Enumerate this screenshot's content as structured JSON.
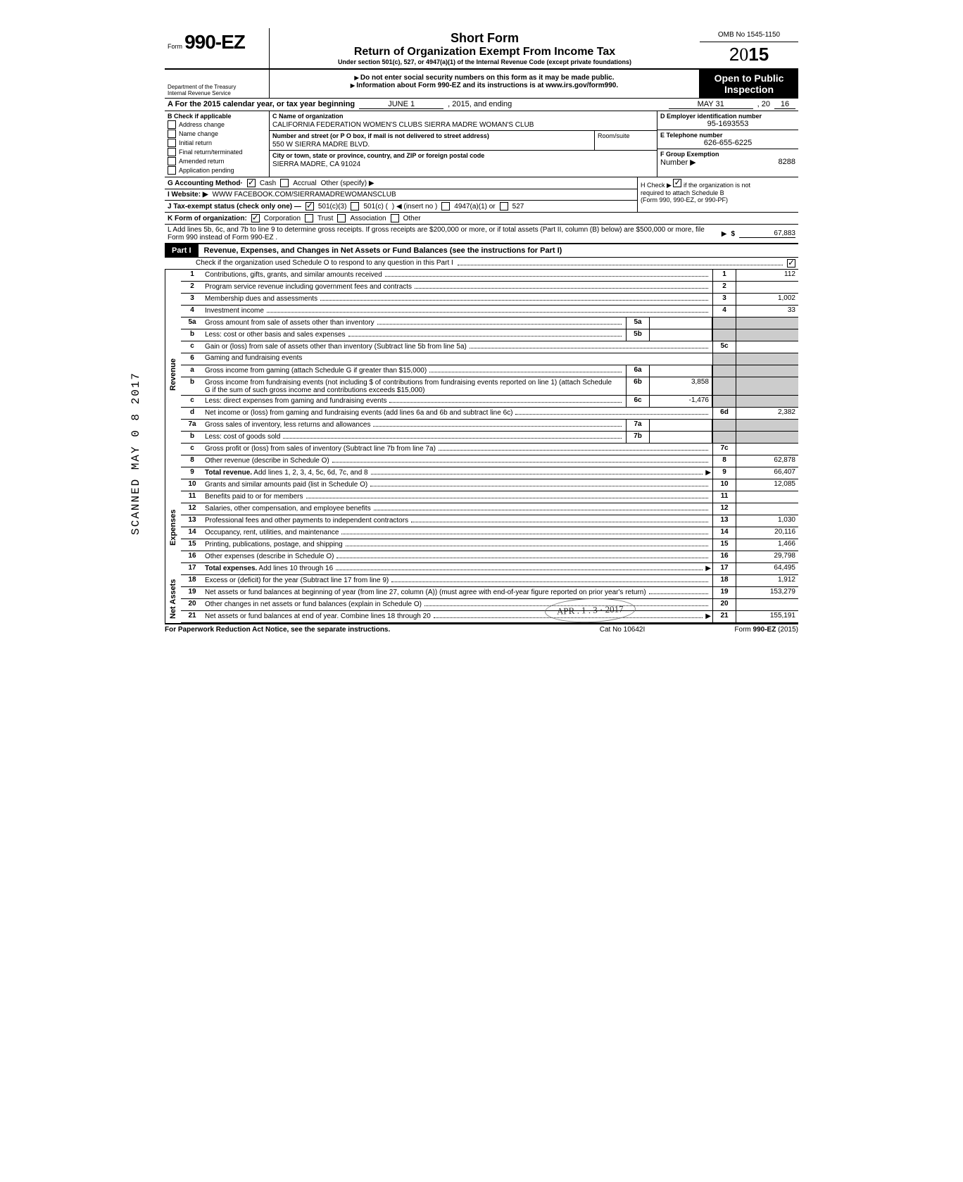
{
  "form": {
    "form_prefix": "Form",
    "form_number": "990-EZ",
    "omb": "OMB No 1545-1150",
    "year": "2015",
    "title1": "Short Form",
    "title2": "Return of Organization Exempt From Income Tax",
    "title3": "Under section 501(c), 527, or 4947(a)(1) of the Internal Revenue Code (except private foundations)",
    "warn": "Do not enter social security numbers on this form as it may be made public.",
    "info": "Information about Form 990-EZ and its instructions is at www.irs.gov/form990.",
    "dept1": "Department of the Treasury",
    "dept2": "Internal Revenue Service",
    "open1": "Open to Public",
    "open2": "Inspection"
  },
  "period": {
    "label_a": "A For the 2015 calendar year, or tax year beginning",
    "begin": "JUNE 1",
    "mid": ", 2015, and ending",
    "end": "MAY 31",
    "tail": ", 20",
    "endyr": "16"
  },
  "section_b": {
    "header": "B Check if applicable",
    "items": [
      "Address change",
      "Name change",
      "Initial return",
      "Final return/terminated",
      "Amended return",
      "Application pending"
    ]
  },
  "section_c": {
    "name_label": "C Name of organization",
    "name": "CALIFORNIA FEDERATION WOMEN'S CLUBS SIERRA MADRE WOMAN'S CLUB",
    "addr_label": "Number and street (or P O box, if mail is not delivered to street address)",
    "addr": "550 W SIERRA MADRE BLVD.",
    "room_label": "Room/suite",
    "city_label": "City or town, state or province, country, and ZIP or foreign postal code",
    "city": "SIERRA MADRE, CA 91024"
  },
  "section_d": {
    "label": "D Employer identification number",
    "val": "95-1693553"
  },
  "section_e": {
    "label": "E Telephone number",
    "val": "626-655-6225"
  },
  "section_f": {
    "label": "F Group Exemption",
    "label2": "Number ▶",
    "val": "8288"
  },
  "section_g": {
    "label": "G Accounting Method·",
    "cash": "Cash",
    "accrual": "Accrual",
    "other": "Other (specify) ▶"
  },
  "section_h": {
    "line1": "H Check ▶",
    "line1b": "if the organization is not",
    "line2": "required to attach Schedule B",
    "line3": "(Form 990, 990-EZ, or 990-PF)"
  },
  "section_i": {
    "label": "I Website: ▶",
    "val": "WWW FACEBOOK.COM/SIERRAMADREWOMANSCLUB"
  },
  "section_j": {
    "label": "J Tax-exempt status (check only one) —",
    "opt1": "501(c)(3)",
    "opt2": "501(c) (",
    "opt2b": ") ◀ (insert no )",
    "opt3": "4947(a)(1) or",
    "opt4": "527"
  },
  "section_k": {
    "label": "K Form of organization:",
    "corp": "Corporation",
    "trust": "Trust",
    "assoc": "Association",
    "other": "Other"
  },
  "section_l": {
    "text": "L Add lines 5b, 6c, and 7b to line 9 to determine gross receipts. If gross receipts are $200,000 or more, or if total assets (Part II, column (B) below) are $500,000 or more, file Form 990 instead of Form 990-EZ .",
    "dollar": "$",
    "val": "67,883"
  },
  "part1": {
    "tab": "Part I",
    "title": "Revenue, Expenses, and Changes in Net Assets or Fund Balances (see the instructions for Part I)",
    "sub": "Check if the organization used Schedule O to respond to any question in this Part I"
  },
  "side": {
    "revenue": "Revenue",
    "expenses": "Expenses",
    "netassets": "Net Assets"
  },
  "rows": {
    "r1": {
      "n": "1",
      "d": "Contributions, gifts, grants, and similar amounts received",
      "en": "1",
      "ev": "112"
    },
    "r2": {
      "n": "2",
      "d": "Program service revenue including government fees and contracts",
      "en": "2",
      "ev": ""
    },
    "r3": {
      "n": "3",
      "d": "Membership dues and assessments",
      "en": "3",
      "ev": "1,002"
    },
    "r4": {
      "n": "4",
      "d": "Investment income",
      "en": "4",
      "ev": "33"
    },
    "r5a": {
      "n": "5a",
      "d": "Gross amount from sale of assets other than inventory",
      "mn": "5a",
      "mv": ""
    },
    "r5b": {
      "n": "b",
      "d": "Less: cost or other basis and sales expenses",
      "mn": "5b",
      "mv": ""
    },
    "r5c": {
      "n": "c",
      "d": "Gain or (loss) from sale of assets other than inventory (Subtract line 5b from line 5a)",
      "en": "5c",
      "ev": ""
    },
    "r6": {
      "n": "6",
      "d": "Gaming and fundraising events"
    },
    "r6a": {
      "n": "a",
      "d": "Gross income from gaming (attach Schedule G if greater than $15,000)",
      "mn": "6a",
      "mv": ""
    },
    "r6b": {
      "n": "b",
      "d": "Gross income from fundraising events (not including  $                     of contributions from fundraising events reported on line 1) (attach Schedule G if the sum of such gross income and contributions exceeds $15,000)",
      "mn": "6b",
      "mv": "3,858"
    },
    "r6c": {
      "n": "c",
      "d": "Less: direct expenses from gaming and fundraising events",
      "mn": "6c",
      "mv": "-1,476"
    },
    "r6d": {
      "n": "d",
      "d": "Net income or (loss) from gaming and fundraising events (add lines 6a and 6b and subtract line 6c)",
      "en": "6d",
      "ev": "2,382"
    },
    "r7a": {
      "n": "7a",
      "d": "Gross sales of inventory, less returns and allowances",
      "mn": "7a",
      "mv": ""
    },
    "r7b": {
      "n": "b",
      "d": "Less: cost of goods sold",
      "mn": "7b",
      "mv": ""
    },
    "r7c": {
      "n": "c",
      "d": "Gross profit or (loss) from sales of inventory (Subtract line 7b from line 7a)",
      "en": "7c",
      "ev": ""
    },
    "r8": {
      "n": "8",
      "d": "Other revenue (describe in Schedule O)",
      "en": "8",
      "ev": "62,878"
    },
    "r9": {
      "n": "9",
      "d": "Total revenue. Add lines 1, 2, 3, 4, 5c, 6d, 7c, and 8",
      "en": "9",
      "ev": "66,407"
    },
    "r10": {
      "n": "10",
      "d": "Grants and similar amounts paid (list in Schedule O)",
      "en": "10",
      "ev": "12,085"
    },
    "r11": {
      "n": "11",
      "d": "Benefits paid to or for members",
      "en": "11",
      "ev": ""
    },
    "r12": {
      "n": "12",
      "d": "Salaries, other compensation, and employee benefits",
      "en": "12",
      "ev": ""
    },
    "r13": {
      "n": "13",
      "d": "Professional fees and other payments to independent contractors",
      "en": "13",
      "ev": "1,030"
    },
    "r14": {
      "n": "14",
      "d": "Occupancy, rent, utilities, and maintenance",
      "en": "14",
      "ev": "20,116"
    },
    "r15": {
      "n": "15",
      "d": "Printing, publications, postage, and shipping",
      "en": "15",
      "ev": "1,466"
    },
    "r16": {
      "n": "16",
      "d": "Other expenses (describe in Schedule O)",
      "en": "16",
      "ev": "29,798"
    },
    "r17": {
      "n": "17",
      "d": "Total expenses. Add lines 10 through 16",
      "en": "17",
      "ev": "64,495"
    },
    "r18": {
      "n": "18",
      "d": "Excess or (deficit) for the year (Subtract line 17 from line 9)",
      "en": "18",
      "ev": "1,912"
    },
    "r19": {
      "n": "19",
      "d": "Net assets or fund balances at beginning of year (from line 27, column (A)) (must agree with end-of-year figure reported on prior year's return)",
      "en": "19",
      "ev": "153,279"
    },
    "r20": {
      "n": "20",
      "d": "Other changes in net assets or fund balances (explain in Schedule O)",
      "en": "20",
      "ev": ""
    },
    "r21": {
      "n": "21",
      "d": "Net assets or fund balances at end of year. Combine lines 18 through 20",
      "en": "21",
      "ev": "155,191"
    }
  },
  "footer": {
    "left": "For Paperwork Reduction Act Notice, see the separate instructions.",
    "mid": "Cat No 10642I",
    "right": "Form 990-EZ (2015)"
  },
  "stamp": "SCANNED  MAY 0 8 2017",
  "datestamp": "APR . 1 . 3 · 2017"
}
